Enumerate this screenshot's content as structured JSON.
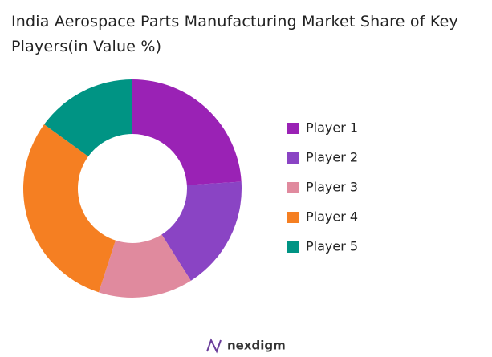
{
  "chart_data": {
    "type": "donut",
    "title": "India Aerospace Parts Manufacturing Market Share of Key Players(in Value %)",
    "categories": [
      "Player 1",
      "Player 2",
      "Player 3",
      "Player 4",
      "Player 5"
    ],
    "values": [
      24,
      17,
      14,
      30,
      15
    ],
    "colors": [
      "#9a22b5",
      "#8a44c4",
      "#e08a9e",
      "#f57f22",
      "#009484"
    ],
    "legend": "right"
  },
  "brand": "nexdigm"
}
